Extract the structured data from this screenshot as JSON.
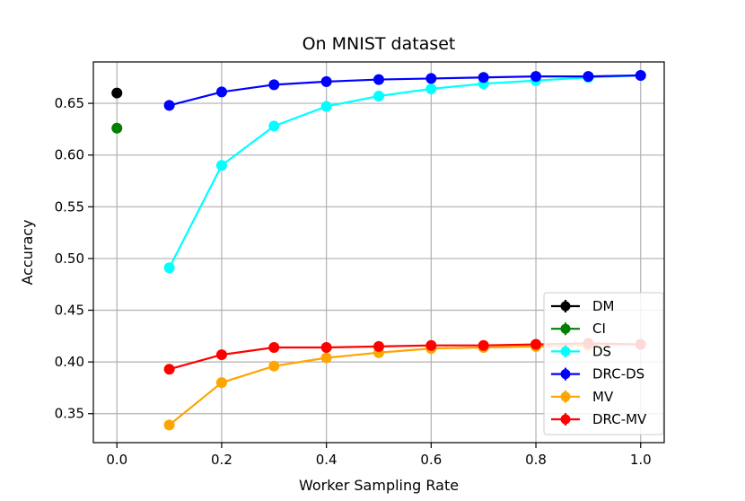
{
  "chart_data": {
    "type": "line",
    "title": "On MNIST dataset",
    "xlabel": "Worker Sampling Rate",
    "ylabel": "Accuracy",
    "xlim": [
      -0.045,
      1.045
    ],
    "ylim": [
      0.322,
      0.69
    ],
    "xticks": [
      0.0,
      0.2,
      0.4,
      0.6,
      0.8,
      1.0
    ],
    "xtick_labels": [
      "0.0",
      "0.2",
      "0.4",
      "0.6",
      "0.8",
      "1.0"
    ],
    "yticks": [
      0.35,
      0.4,
      0.45,
      0.5,
      0.55,
      0.6,
      0.65
    ],
    "ytick_labels": [
      "0.35",
      "0.40",
      "0.45",
      "0.50",
      "0.55",
      "0.60",
      "0.65"
    ],
    "grid": true,
    "legend_position": "lower-right",
    "series": [
      {
        "name": "DM",
        "color": "#000000",
        "x": [
          0.0
        ],
        "y": [
          0.66
        ]
      },
      {
        "name": "CI",
        "color": "#008000",
        "x": [
          0.0
        ],
        "y": [
          0.626
        ]
      },
      {
        "name": "DS",
        "color": "#00ffff",
        "x": [
          0.1,
          0.2,
          0.3,
          0.4,
          0.5,
          0.6,
          0.7,
          0.8,
          0.9,
          1.0
        ],
        "y": [
          0.491,
          0.59,
          0.628,
          0.647,
          0.657,
          0.664,
          0.669,
          0.672,
          0.675,
          0.677
        ]
      },
      {
        "name": "DRC-DS",
        "color": "#0000ff",
        "x": [
          0.1,
          0.2,
          0.3,
          0.4,
          0.5,
          0.6,
          0.7,
          0.8,
          0.9,
          1.0
        ],
        "y": [
          0.648,
          0.661,
          0.668,
          0.671,
          0.673,
          0.674,
          0.675,
          0.676,
          0.676,
          0.677
        ]
      },
      {
        "name": "MV",
        "color": "#ffa500",
        "x": [
          0.1,
          0.2,
          0.3,
          0.4,
          0.5,
          0.6,
          0.7,
          0.8,
          0.9,
          1.0
        ],
        "y": [
          0.339,
          0.38,
          0.396,
          0.404,
          0.409,
          0.413,
          0.414,
          0.415,
          0.416,
          0.417
        ]
      },
      {
        "name": "DRC-MV",
        "color": "#ff0000",
        "x": [
          0.1,
          0.2,
          0.3,
          0.4,
          0.5,
          0.6,
          0.7,
          0.8,
          0.9,
          1.0
        ],
        "y": [
          0.393,
          0.407,
          0.414,
          0.414,
          0.415,
          0.416,
          0.416,
          0.417,
          0.418,
          0.417
        ]
      }
    ]
  }
}
